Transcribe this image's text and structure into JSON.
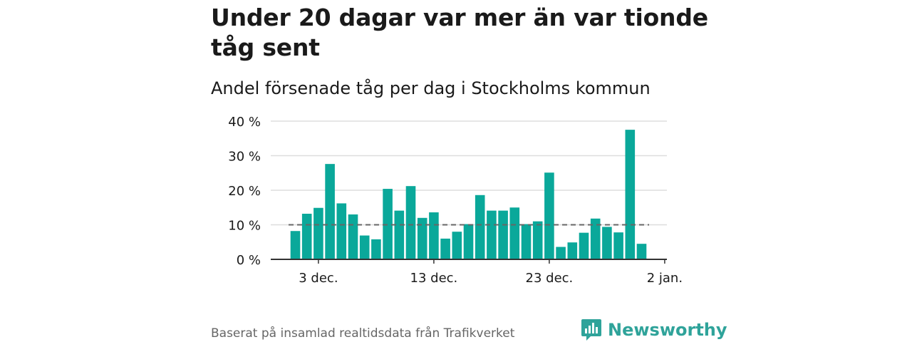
{
  "title": "Under 20 dagar var mer än var tionde tåg sent",
  "subtitle": "Andel försenade tåg per dag i Stockholms kommun",
  "source": "Baserat på insamlad realtidsdata från Trafikverket",
  "brand": {
    "name": "Newsworthy",
    "icon": "newsworthy-logo-icon",
    "color": "#2fa39a"
  },
  "chart_data": {
    "type": "bar",
    "bar_color": "#0aa89a",
    "reference_line": {
      "value": 10,
      "style": "dashed",
      "color": "#666666"
    },
    "categories": [
      "1 dec.",
      "2 dec.",
      "3 dec.",
      "4 dec.",
      "5 dec.",
      "6 dec.",
      "7 dec.",
      "8 dec.",
      "9 dec.",
      "10 dec.",
      "11 dec.",
      "12 dec.",
      "13 dec.",
      "14 dec.",
      "15 dec.",
      "16 dec.",
      "17 dec.",
      "18 dec.",
      "19 dec.",
      "20 dec.",
      "21 dec.",
      "22 dec.",
      "23 dec.",
      "24 dec.",
      "25 dec.",
      "26 dec.",
      "27 dec.",
      "28 dec.",
      "29 dec.",
      "30 dec.",
      "31 dec."
    ],
    "values": [
      8.2,
      13.2,
      14.9,
      27.6,
      16.2,
      13.0,
      6.9,
      5.8,
      20.4,
      14.1,
      21.2,
      12.0,
      13.6,
      6.0,
      8.0,
      10.2,
      18.6,
      14.1,
      14.1,
      15.0,
      10.2,
      11.0,
      25.1,
      3.6,
      4.9,
      7.7,
      11.8,
      9.4,
      7.8,
      37.5,
      4.5
    ],
    "ylim": [
      0,
      40
    ],
    "yticks": [
      0,
      10,
      20,
      30,
      40
    ],
    "ytick_labels": [
      "0 %",
      "10 %",
      "20 %",
      "30 %",
      "40 %"
    ],
    "xtick_labels": [
      {
        "index": 2,
        "label": "3 dec."
      },
      {
        "index": 12,
        "label": "13 dec."
      },
      {
        "index": 22,
        "label": "23 dec."
      },
      {
        "index": 32,
        "label": "2 jan."
      }
    ],
    "grid": true,
    "xlabel": "",
    "ylabel": ""
  }
}
